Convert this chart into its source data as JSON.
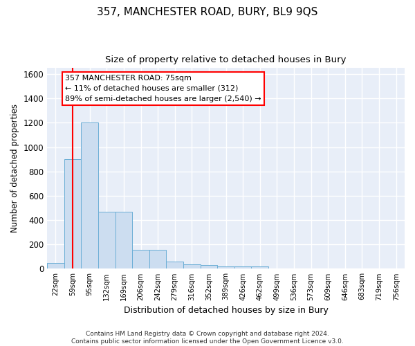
{
  "title": "357, MANCHESTER ROAD, BURY, BL9 9QS",
  "subtitle": "Size of property relative to detached houses in Bury",
  "xlabel": "Distribution of detached houses by size in Bury",
  "ylabel": "Number of detached properties",
  "bin_labels": [
    "22sqm",
    "59sqm",
    "95sqm",
    "132sqm",
    "169sqm",
    "206sqm",
    "242sqm",
    "279sqm",
    "316sqm",
    "352sqm",
    "389sqm",
    "426sqm",
    "462sqm",
    "499sqm",
    "536sqm",
    "573sqm",
    "609sqm",
    "646sqm",
    "683sqm",
    "719sqm",
    "756sqm"
  ],
  "bar_heights": [
    50,
    900,
    1200,
    470,
    470,
    155,
    155,
    60,
    35,
    30,
    20,
    20,
    20,
    0,
    0,
    0,
    0,
    0,
    0,
    0,
    0
  ],
  "bar_color": "#ccddf0",
  "bar_edge_color": "#6baed6",
  "vline_x": 1,
  "vline_color": "red",
  "annotation_text": "357 MANCHESTER ROAD: 75sqm\n← 11% of detached houses are smaller (312)\n89% of semi-detached houses are larger (2,540) →",
  "annotation_box_color": "white",
  "annotation_box_edge": "red",
  "ylim": [
    0,
    1650
  ],
  "yticks": [
    0,
    200,
    400,
    600,
    800,
    1000,
    1200,
    1400,
    1600
  ],
  "background_color": "#e8eef8",
  "grid_color": "#d0d8e8",
  "footer": "Contains HM Land Registry data © Crown copyright and database right 2024.\nContains public sector information licensed under the Open Government Licence v3.0."
}
